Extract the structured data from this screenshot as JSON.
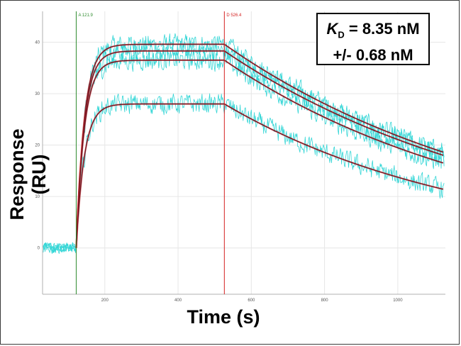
{
  "chart_data": {
    "type": "line",
    "xlabel": "Time (s)",
    "ylabel": "Response (RU)",
    "xlim": [
      30,
      1130
    ],
    "ylim": [
      -9,
      46
    ],
    "x_ticks": [
      200,
      400,
      600,
      800,
      1000
    ],
    "y_ticks": [
      0,
      10,
      20,
      30,
      40
    ],
    "grid": true,
    "association_start": 121.9,
    "dissociation_start": 526.4,
    "markers": [
      {
        "label": "A 121.9",
        "x": 121.9,
        "color": "#2e8b2e"
      },
      {
        "label": "D 526.4",
        "x": 526.4,
        "color": "#d42020"
      }
    ],
    "kd_text": {
      "label": "K",
      "subscript": "D",
      "value": " = 8.35 nM",
      "error": "+/- 0.68 nM"
    },
    "series": [
      {
        "plateau": 39.6,
        "dissoc_end": 18.6
      },
      {
        "plateau": 38.3,
        "dissoc_end": 18.0
      },
      {
        "plateau": 36.5,
        "dissoc_end": 16.5
      },
      {
        "plateau": 28.0,
        "dissoc_end": 11.4
      }
    ],
    "kinetics": {
      "kon": 0.045,
      "dissoc_fit_start_offset": -5,
      "koff": 0.0011,
      "baseline": 0.0,
      "noise_amplitude": 2.6
    },
    "colors": {
      "data": "#33d6d6",
      "fit": "#5a1020",
      "fit_edge": "#d42a2a",
      "grid": "#e6e6e6",
      "axis": "#b0b0b0",
      "tick_label": "#555555"
    }
  }
}
